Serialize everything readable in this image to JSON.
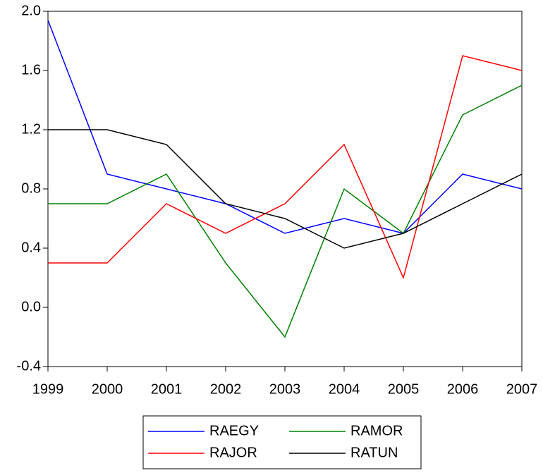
{
  "chart_data": {
    "type": "line",
    "x": [
      1999,
      2000,
      2001,
      2002,
      2003,
      2004,
      2005,
      2006,
      2007
    ],
    "xlim": [
      1999,
      2007
    ],
    "xticks": [
      1999,
      2000,
      2001,
      2002,
      2003,
      2004,
      2005,
      2006,
      2007
    ],
    "ylim": [
      -0.4,
      2.0
    ],
    "yticks": [
      {
        "value": 2.0,
        "label": "2.0"
      },
      {
        "value": 1.6,
        "label": "1.6"
      },
      {
        "value": 1.2,
        "label": "1.2"
      },
      {
        "value": 0.8,
        "label": "0.8"
      },
      {
        "value": 0.4,
        "label": "0.4"
      },
      {
        "value": 0.0,
        "label": "0.0"
      },
      {
        "value": -0.4,
        "label": "-0.4"
      }
    ],
    "legend": "bottom",
    "series": [
      {
        "name": "RAEGY",
        "color": "#0000ff",
        "values": [
          1.94,
          0.9,
          0.8,
          0.7,
          0.5,
          0.6,
          0.5,
          0.9,
          0.8
        ]
      },
      {
        "name": "RAMOR",
        "color": "#008000",
        "values": [
          0.7,
          0.7,
          0.9,
          0.3,
          -0.2,
          0.8,
          0.5,
          1.3,
          1.5
        ]
      },
      {
        "name": "RAJOR",
        "color": "#ff0000",
        "values": [
          0.3,
          0.3,
          0.7,
          0.5,
          0.7,
          1.1,
          0.2,
          1.7,
          1.6
        ]
      },
      {
        "name": "RATUN",
        "color": "#000000",
        "values": [
          1.2,
          1.2,
          1.1,
          0.7,
          0.6,
          0.4,
          0.5,
          0.7,
          0.9
        ]
      }
    ]
  }
}
